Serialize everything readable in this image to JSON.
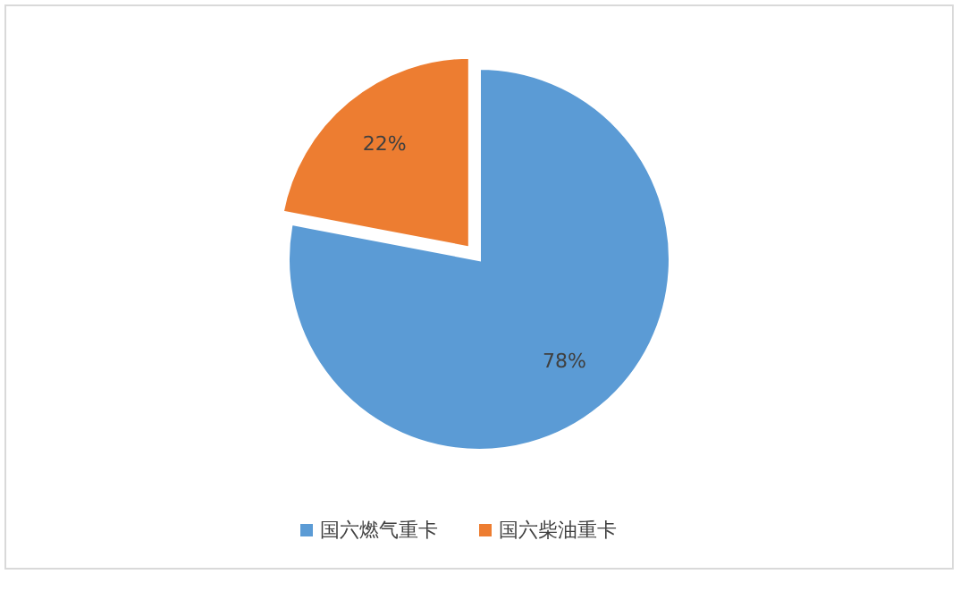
{
  "chart_data": {
    "type": "pie",
    "categories": [
      "国六燃气重卡",
      "国六柴油重卡"
    ],
    "values": [
      78,
      22
    ],
    "colors": [
      "#5b9bd5",
      "#ed7d31"
    ],
    "value_labels": [
      "78%",
      "22%"
    ],
    "legend": "bottom"
  }
}
